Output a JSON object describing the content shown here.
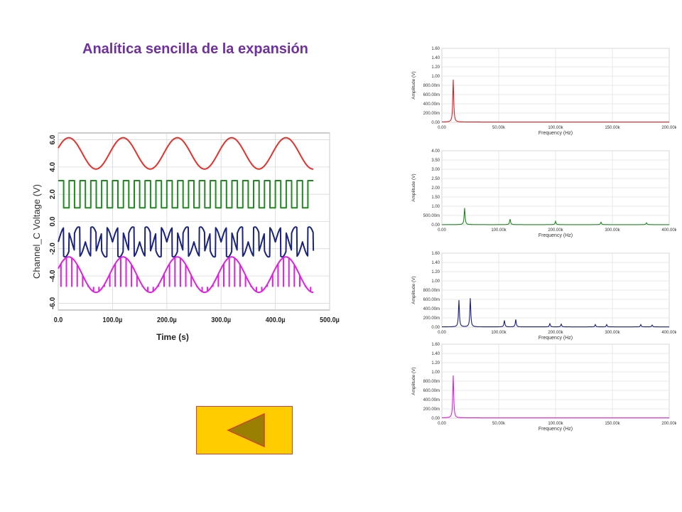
{
  "title": "Analítica sencilla de la expansión",
  "colors": {
    "red": "#e8302a",
    "green": "#1f8a1f",
    "navy": "#1a237e",
    "magenta": "#e020e0",
    "button_bg": "#ffcc00",
    "button_arrow": "#998000"
  },
  "buttons": {
    "back": {
      "icon": "left-triangle-icon"
    }
  },
  "chart_data": [
    {
      "type": "line",
      "title": "",
      "xlabel": "Time (s)",
      "ylabel": "Channel_C Voltage (V)",
      "xticks": [
        "0.0",
        "100.0µ",
        "200.0µ",
        "300.0µ",
        "400.0µ",
        "500.0µ"
      ],
      "yticks": [
        "6.0",
        "4.0",
        "2.0",
        "0.0",
        "-2.0",
        "-4.0",
        "-6.0"
      ],
      "xlim": [
        0,
        500
      ],
      "ylim": [
        -6.5,
        6.5
      ],
      "series": [
        {
          "color": "#e8302a",
          "kind": "sine",
          "offset": 5.0,
          "amp": 1.15,
          "period": 100,
          "phase": 0
        },
        {
          "color": "#1f8a1f",
          "kind": "square",
          "offset": 2.0,
          "amp": 1.0,
          "period": 20
        },
        {
          "color": "#1a237e",
          "kind": "chopped",
          "offset": -1.5,
          "amp": 1.1,
          "period": 50
        },
        {
          "color": "#e020e0",
          "kind": "sampled",
          "offset": -3.9,
          "amp": 1.3,
          "period": 100
        }
      ]
    },
    {
      "type": "line",
      "xlabel": "Frequency (Hz)",
      "ylabel": "Amplitude (V)",
      "xticks": [
        "0.00",
        "50.00k",
        "100.00k",
        "150.00k",
        "200.00k"
      ],
      "yticks": [
        "1.60",
        "1.40",
        "1.20",
        "1.00",
        "800.00m",
        "600.00m",
        "400.00m",
        "200.00m",
        "0.00"
      ],
      "xlim": [
        0,
        200000
      ],
      "ylim": [
        0,
        1.6
      ],
      "color": "#e02020",
      "peaks": [
        {
          "f": 10000,
          "a": 0.92
        }
      ]
    },
    {
      "type": "line",
      "xlabel": "Frequency (Hz)",
      "ylabel": "Amplitude (V)",
      "xticks": [
        "0.00",
        "100.00k",
        "200.00k",
        "300.00k",
        "400.00k"
      ],
      "yticks": [
        "4.00",
        "3.50",
        "3.00",
        "2.50",
        "2.00",
        "1.50",
        "1.00",
        "500.00m",
        "0.00"
      ],
      "xlim": [
        0,
        400000
      ],
      "ylim": [
        0,
        4.0
      ],
      "color": "#1f8a1f",
      "peaks": [
        {
          "f": 40000,
          "a": 0.9
        },
        {
          "f": 120000,
          "a": 0.3
        },
        {
          "f": 200000,
          "a": 0.18
        },
        {
          "f": 280000,
          "a": 0.13
        },
        {
          "f": 360000,
          "a": 0.1
        }
      ]
    },
    {
      "type": "line",
      "xlabel": "Frequency (Hz)",
      "ylabel": "Amplitude (V)",
      "xticks": [
        "0.00",
        "100.00k",
        "200.00k",
        "300.00k",
        "400.00k"
      ],
      "yticks": [
        "1.60",
        "1.40",
        "1.20",
        "1.00",
        "800.00m",
        "600.00m",
        "400.00m",
        "200.00m",
        "0.00"
      ],
      "xlim": [
        0,
        400000
      ],
      "ylim": [
        0,
        1.6
      ],
      "color": "#1a237e",
      "peaks": [
        {
          "f": 30000,
          "a": 0.58
        },
        {
          "f": 50000,
          "a": 0.62
        },
        {
          "f": 110000,
          "a": 0.14
        },
        {
          "f": 130000,
          "a": 0.16
        },
        {
          "f": 190000,
          "a": 0.07
        },
        {
          "f": 210000,
          "a": 0.06
        },
        {
          "f": 270000,
          "a": 0.05
        },
        {
          "f": 290000,
          "a": 0.05
        },
        {
          "f": 350000,
          "a": 0.05
        },
        {
          "f": 370000,
          "a": 0.04
        }
      ]
    },
    {
      "type": "line",
      "xlabel": "Frequency (Hz)",
      "ylabel": "Amplitude (V)",
      "xticks": [
        "0.00",
        "50.00k",
        "100.00k",
        "150.00k",
        "200.00k"
      ],
      "yticks": [
        "1.60",
        "1.40",
        "1.20",
        "1.00",
        "800.00m",
        "600.00m",
        "400.00m",
        "200.00m",
        "0.00"
      ],
      "xlim": [
        0,
        200000
      ],
      "ylim": [
        0,
        1.6
      ],
      "color": "#e020e0",
      "peaks": [
        {
          "f": 10000,
          "a": 0.92
        }
      ]
    }
  ]
}
